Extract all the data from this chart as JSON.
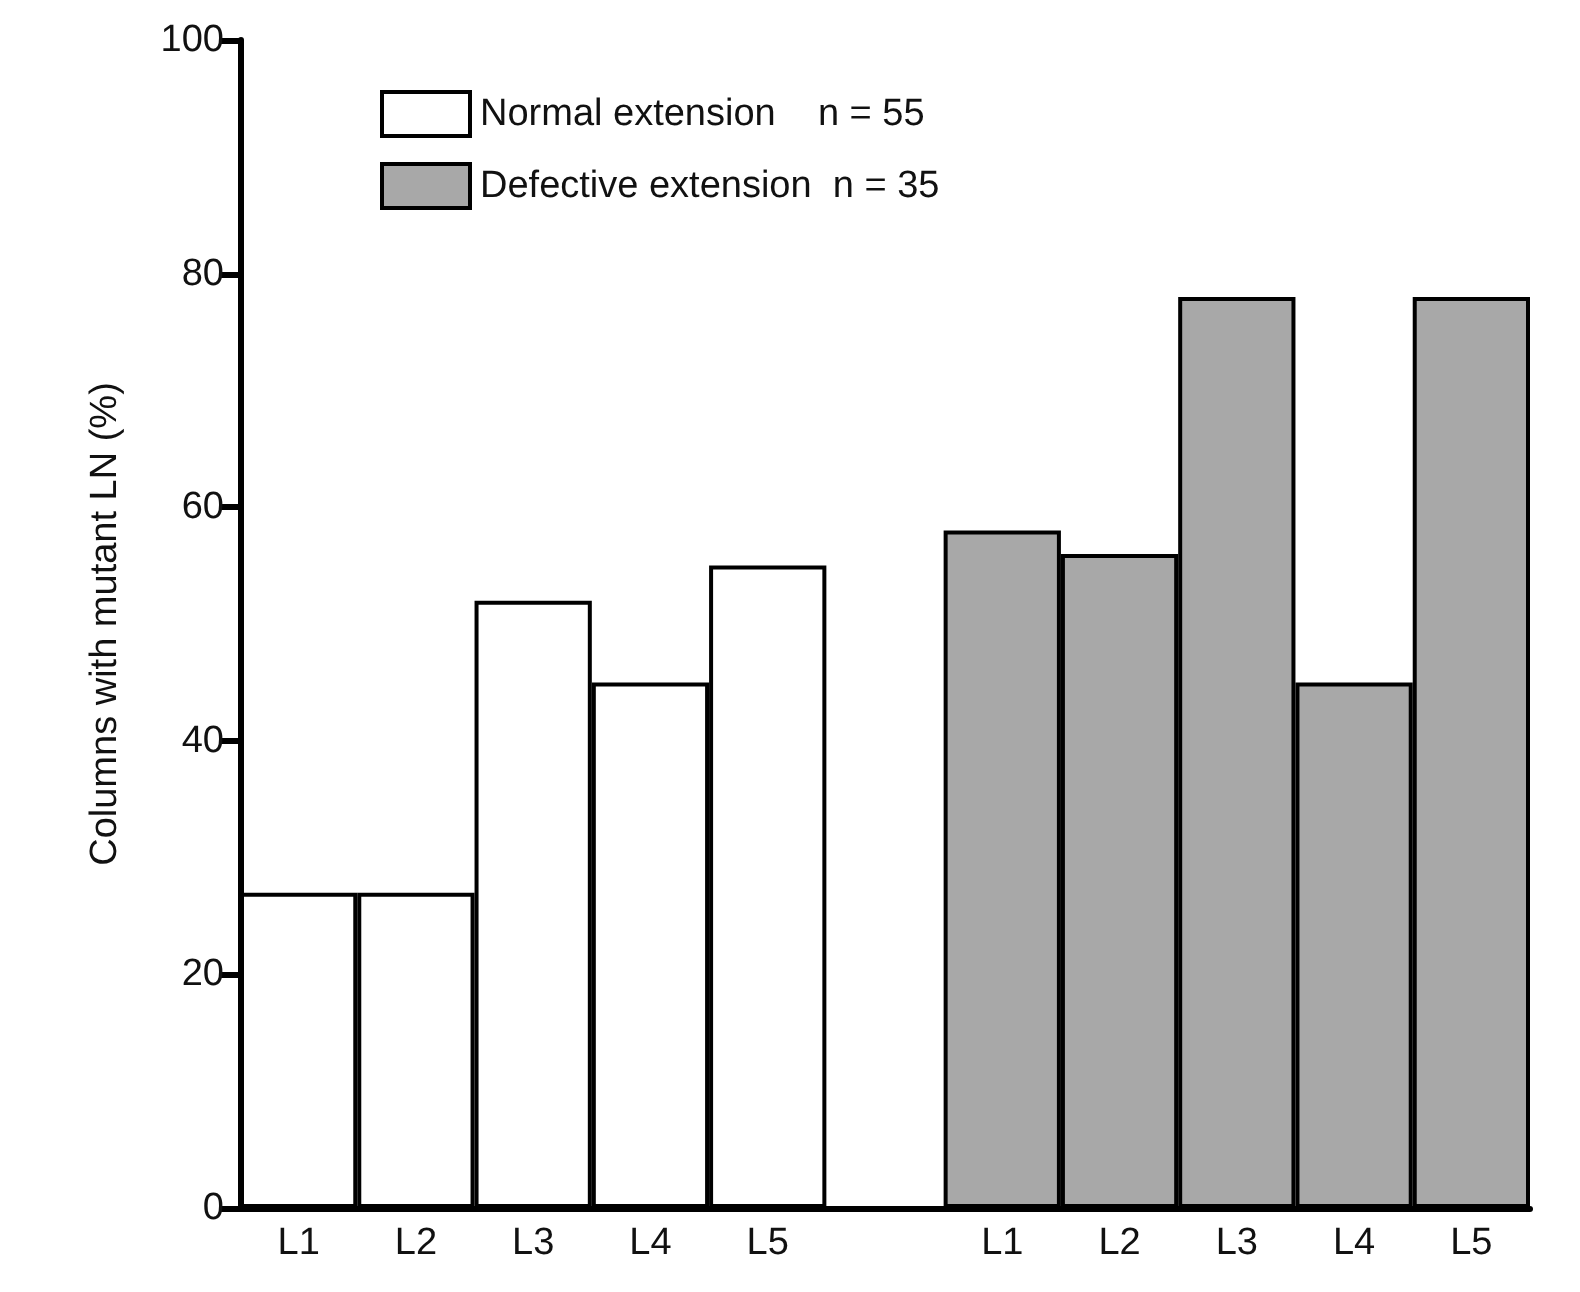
{
  "chart_data": {
    "type": "bar",
    "ylabel": "Columns with mutant LN (%)",
    "categories": [
      "L1",
      "L2",
      "L3",
      "L4",
      "L5",
      null,
      "L1",
      "L2",
      "L3",
      "L4",
      "L5"
    ],
    "series": [
      {
        "name": "Normal extension    n = 55",
        "color": "#ffffff",
        "values": [
          27,
          27,
          52,
          45,
          55,
          null,
          null,
          null,
          null,
          null,
          null
        ]
      },
      {
        "name": "Defective extension  n = 35",
        "color": "#a8a8a8",
        "values": [
          null,
          null,
          null,
          null,
          null,
          null,
          58,
          56,
          78,
          45,
          78
        ]
      }
    ],
    "stacked": true,
    "ylim": [
      0,
      100
    ],
    "yticks": [
      0,
      20,
      40,
      60,
      80,
      100
    ],
    "grid": false,
    "legend": "top left"
  }
}
